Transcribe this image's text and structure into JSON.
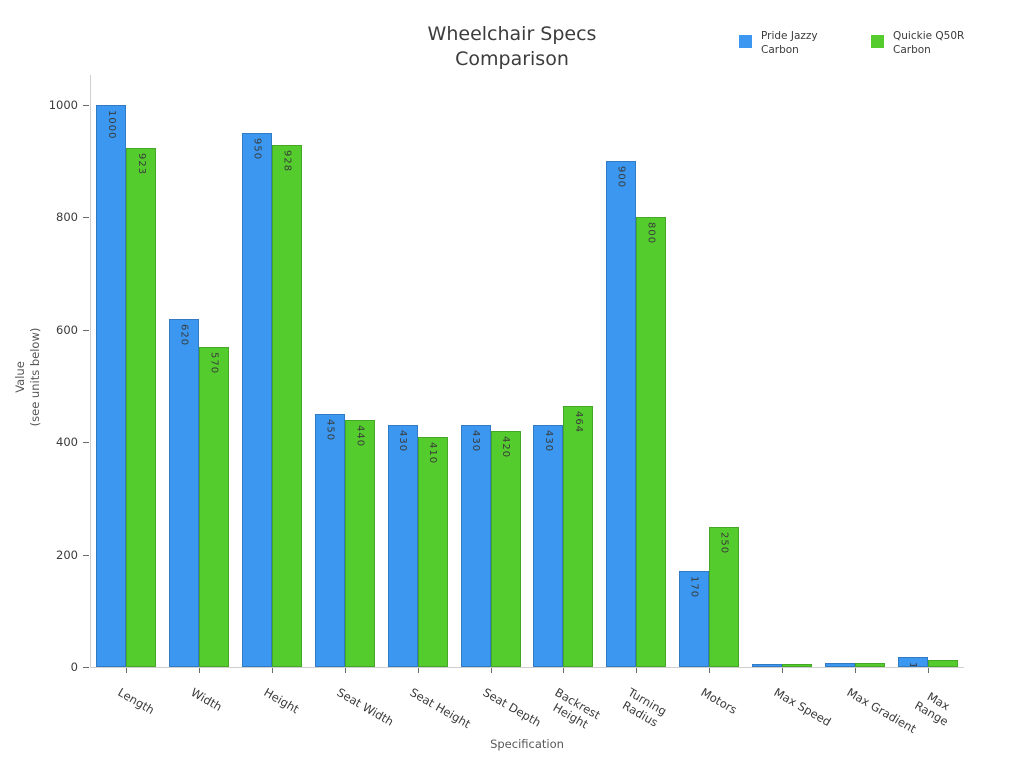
{
  "title": {
    "line1": "Wheelchair Specs",
    "line2": "Comparison"
  },
  "legend": {
    "items": [
      {
        "name": "Pride Jazzy\nCarbon",
        "color": "#3b97ef"
      },
      {
        "name": "Quickie Q50R\nCarbon",
        "color": "#55cc2e"
      }
    ]
  },
  "y_axis": {
    "title": "Value\n(see units below)"
  },
  "x_axis": {
    "title": "Specification"
  },
  "chart_data": {
    "type": "bar",
    "title": "Wheelchair Specs Comparison",
    "categories": [
      "Length",
      "Width",
      "Height",
      "Seat Width",
      "Seat Height",
      "Seat Depth",
      "Backrest\nHeight",
      "Turning\nRadius",
      "Motors",
      "Max Speed",
      "Max Gradient",
      "Max Range"
    ],
    "series": [
      {
        "name": "Pride Jazzy Carbon",
        "color": "#3b97ef",
        "values": [
          1000,
          620,
          950,
          450,
          430,
          430,
          430,
          900,
          170,
          6,
          8,
          18
        ]
      },
      {
        "name": "Quickie Q50R Carbon",
        "color": "#55cc2e",
        "values": [
          923,
          570,
          928,
          440,
          410,
          420,
          464,
          800,
          250,
          6,
          8,
          12
        ]
      }
    ],
    "xlabel": "Specification",
    "ylabel": "Value (see units below)",
    "ylim": [
      0,
      1000
    ],
    "yticks": [
      0,
      200,
      400,
      600,
      800,
      1000
    ],
    "bar_value_labels": true,
    "grid": false,
    "legend_position": "top-right"
  }
}
